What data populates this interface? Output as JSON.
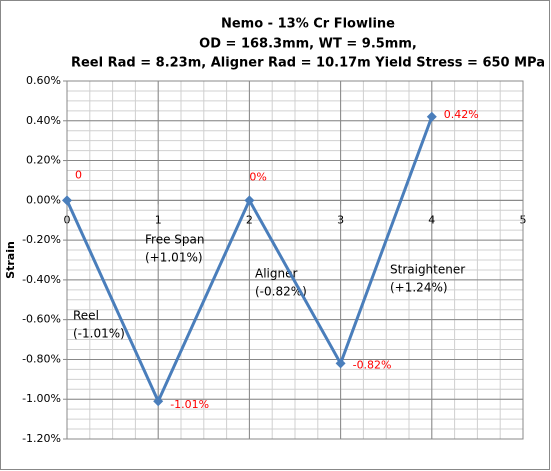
{
  "chart_data": {
    "type": "line",
    "title": [
      "Nemo - 13% Cr Flowline",
      "OD = 168.3mm, WT = 9.5mm,",
      "Reel Rad = 8.23m, Aligner Rad = 10.17m Yield Stress = 650 MPa"
    ],
    "y_label": "Strain",
    "x": [
      0,
      1,
      2,
      3,
      4
    ],
    "series": [
      {
        "color": "#4a7ebb",
        "values": [
          0,
          -1.01,
          0,
          -0.82,
          0.42
        ],
        "value_labels": [
          "0",
          "-1.01%",
          "0%",
          "-0.82%",
          "0.42%"
        ]
      }
    ],
    "value_label_color": "#ff0000",
    "xlim": [
      0,
      5
    ],
    "xticks": [
      0,
      1,
      2,
      3,
      4,
      5
    ],
    "ylim": [
      -1.2,
      0.6
    ],
    "yticks": [
      {
        "value": -1.2,
        "label": "-1.20%"
      },
      {
        "value": -1.0,
        "label": "-1.00%"
      },
      {
        "value": -0.8,
        "label": "-0.80%"
      },
      {
        "value": -0.6,
        "label": "-0.60%"
      },
      {
        "value": -0.4,
        "label": "-0.40%"
      },
      {
        "value": -0.2,
        "label": "-0.20%"
      },
      {
        "value": 0,
        "label": "0.00%"
      },
      {
        "value": 0.2,
        "label": "0.20%"
      },
      {
        "value": 0.4,
        "label": "0.40%"
      },
      {
        "value": 0.6,
        "label": "0.60%"
      }
    ],
    "grid": true,
    "minor_grid": true,
    "annotations": [
      [
        "Reel",
        "(-1.01%)"
      ],
      [
        "Free Span",
        "(+1.01%)"
      ],
      [
        "Aligner",
        "(-0.82%)"
      ],
      [
        "Straightener",
        "(+1.24%)"
      ]
    ]
  }
}
